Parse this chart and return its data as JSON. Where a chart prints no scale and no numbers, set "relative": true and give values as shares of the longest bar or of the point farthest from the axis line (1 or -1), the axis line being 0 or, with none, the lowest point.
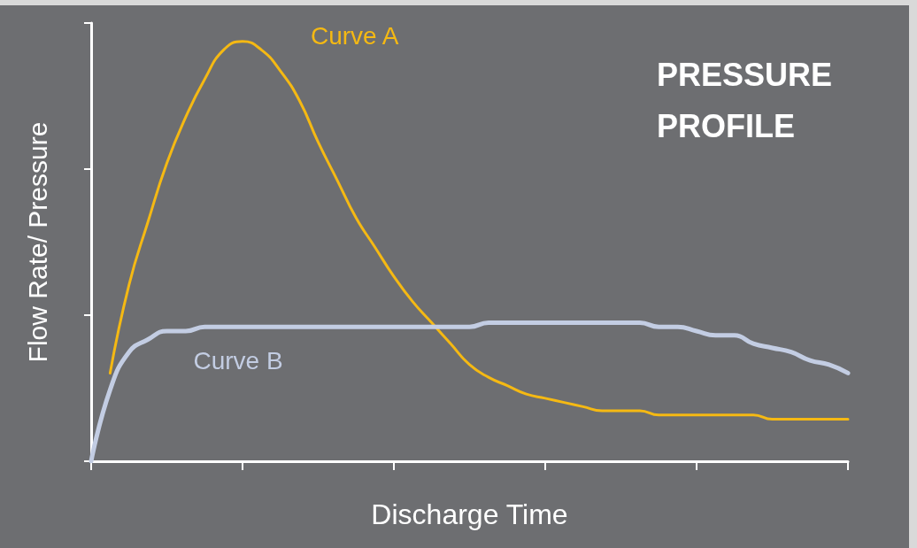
{
  "chart_data": {
    "type": "line",
    "title": "PRESSURE\nPROFILE",
    "xlabel": "Discharge Time",
    "ylabel": "Flow Rate/ Pressure",
    "relative": true,
    "tick_labels": false,
    "grid": false,
    "legend": false,
    "marker": "none",
    "line_style": "solid",
    "categories": [
      null,
      null,
      null,
      null,
      null,
      null,
      null,
      null,
      null,
      null,
      null,
      null,
      null,
      null,
      null,
      null,
      null,
      null,
      null,
      null,
      null,
      null,
      null,
      null,
      null,
      null,
      null,
      null,
      null,
      null,
      null,
      null,
      null,
      null,
      null,
      null,
      null,
      null,
      null,
      null,
      null
    ],
    "series": [
      {
        "name": "Curve A",
        "color": "#f5b913",
        "values": [
          null,
          0.21,
          0.42,
          0.57,
          0.71,
          0.82,
          0.91,
          0.98,
          1.0,
          0.98,
          0.93,
          0.86,
          0.76,
          0.67,
          0.58,
          0.51,
          0.44,
          0.38,
          0.33,
          0.28,
          0.23,
          0.2,
          0.18,
          0.16,
          0.15,
          0.14,
          0.13,
          0.12,
          0.12,
          0.12,
          0.11,
          0.11,
          0.11,
          0.11,
          0.11,
          0.11,
          0.1,
          0.1,
          0.1,
          0.1,
          0.1
        ]
      },
      {
        "name": "Curve B",
        "color": "#c3cde3",
        "values": [
          0.0,
          0.17,
          0.26,
          0.29,
          0.31,
          0.31,
          0.32,
          0.32,
          0.32,
          0.32,
          0.32,
          0.32,
          0.32,
          0.32,
          0.32,
          0.32,
          0.32,
          0.32,
          0.32,
          0.32,
          0.32,
          0.33,
          0.33,
          0.33,
          0.33,
          0.33,
          0.33,
          0.33,
          0.33,
          0.33,
          0.32,
          0.32,
          0.31,
          0.3,
          0.3,
          0.28,
          0.27,
          0.26,
          0.24,
          0.23,
          0.21
        ]
      }
    ]
  }
}
